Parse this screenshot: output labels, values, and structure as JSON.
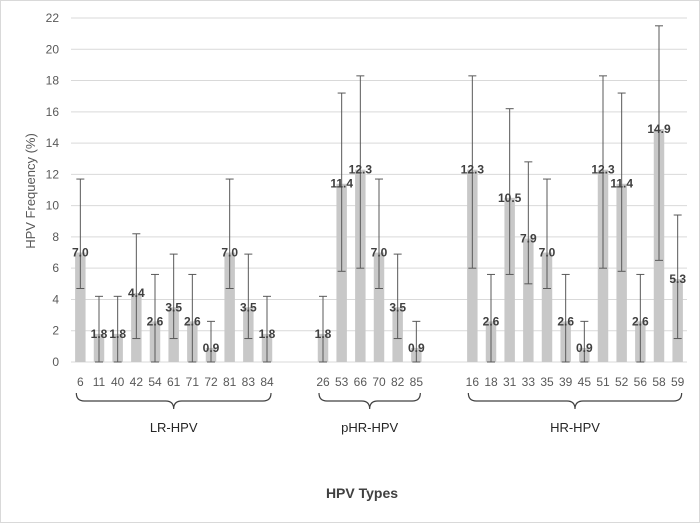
{
  "chart_data": {
    "type": "bar",
    "title": "",
    "xlabel": "HPV Types",
    "ylabel": "HPV Frequency (%)",
    "ylim": [
      0,
      22
    ],
    "yticks": [
      "0",
      "2",
      "4",
      "6",
      "8",
      "10",
      "12",
      "14",
      "16",
      "18",
      "20",
      "22"
    ],
    "grid": true,
    "groups": [
      {
        "name": "LR-HPV",
        "categories": [
          "6",
          "11",
          "40",
          "42",
          "54",
          "61",
          "71",
          "72",
          "81",
          "83",
          "84"
        ],
        "values": [
          7.0,
          1.8,
          1.8,
          4.4,
          2.6,
          3.5,
          2.6,
          0.9,
          7.0,
          3.5,
          1.8
        ],
        "labels": [
          "7.0",
          "1.8",
          "1.8",
          "4.4",
          "2.6",
          "3.5",
          "2.6",
          "0.9",
          "7.0",
          "3.5",
          "1.8"
        ],
        "err_low": [
          4.7,
          0,
          0,
          1.5,
          0,
          1.5,
          0,
          0,
          4.7,
          1.5,
          0
        ],
        "err_high": [
          11.7,
          4.2,
          4.2,
          8.2,
          5.6,
          6.9,
          5.6,
          2.6,
          11.7,
          6.9,
          4.2
        ]
      },
      {
        "name": "pHR-HPV",
        "categories": [
          "26",
          "53",
          "66",
          "70",
          "82",
          "85"
        ],
        "values": [
          1.8,
          11.4,
          12.3,
          7.0,
          3.5,
          0.9
        ],
        "labels": [
          "1.8",
          "11.4",
          "12.3",
          "7.0",
          "3.5",
          "0.9"
        ],
        "err_low": [
          0,
          5.8,
          6.0,
          4.7,
          1.5,
          0
        ],
        "err_high": [
          4.2,
          17.2,
          18.3,
          11.7,
          6.9,
          2.6
        ]
      },
      {
        "name": "HR-HPV",
        "categories": [
          "16",
          "18",
          "31",
          "33",
          "35",
          "39",
          "45",
          "51",
          "52",
          "56",
          "58",
          "59"
        ],
        "values": [
          12.3,
          2.6,
          10.5,
          7.9,
          7.0,
          2.6,
          0.9,
          12.3,
          11.4,
          2.6,
          14.9,
          5.3
        ],
        "labels": [
          "12.3",
          "2.6",
          "10.5",
          "7.9",
          "7.0",
          "2.6",
          "0.9",
          "12.3",
          "11.4",
          "2.6",
          "14.9",
          "5.3"
        ],
        "err_low": [
          6.0,
          0,
          5.6,
          5.0,
          4.7,
          0,
          0,
          6.0,
          5.8,
          0,
          6.5,
          1.5
        ],
        "err_high": [
          18.3,
          5.6,
          16.2,
          12.8,
          11.7,
          5.6,
          2.6,
          18.3,
          17.2,
          5.6,
          21.5,
          9.4
        ]
      }
    ],
    "colors": {
      "bar": "#c8c8c8",
      "error": "#595959",
      "grid": "#d9d9d9",
      "brace": "#404040"
    }
  }
}
